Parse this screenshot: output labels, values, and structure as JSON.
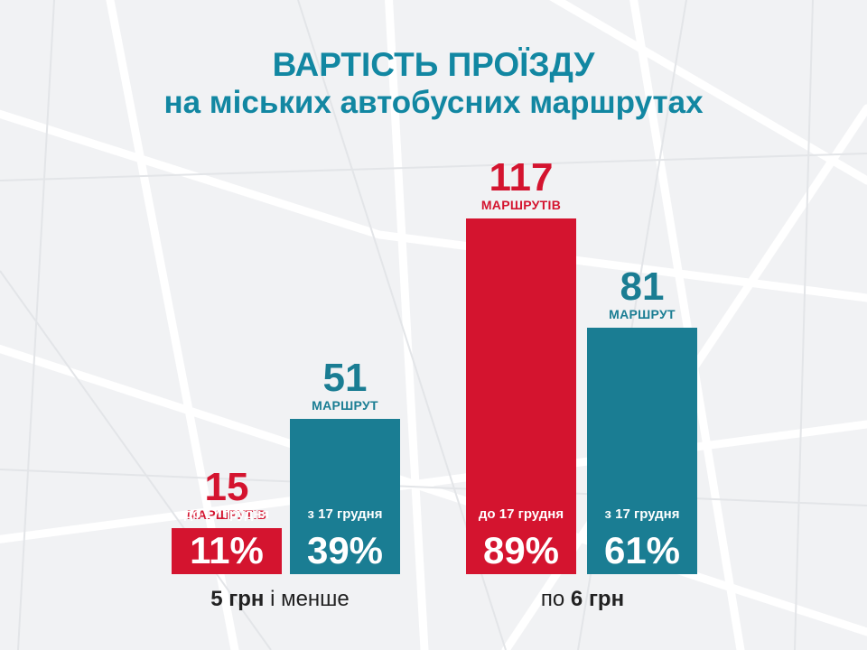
{
  "title_line1": "ВАРТІСТЬ ПРОЇЗДУ",
  "title_line2": "на міських автобусних маршрутах",
  "colors": {
    "before": "#d4142f",
    "after": "#1a7d93",
    "title": "#1287a2"
  },
  "chart_data": {
    "type": "bar",
    "title": "ВАРТІСТЬ ПРОЇЗДУ на міських автобусних маршрутах",
    "categories": [
      "5 грн і менше",
      "по 6 грн"
    ],
    "series": [
      {
        "name": "до 17 грудня",
        "values": [
          15,
          117
        ],
        "units": [
          "МАРШРУТІВ",
          "МАРШРУТІВ"
        ],
        "percent": [
          "11%",
          "89%"
        ]
      },
      {
        "name": "з 17 грудня",
        "values": [
          51,
          81
        ],
        "units": [
          "МАРШРУТ",
          "МАРШРУТ"
        ],
        "percent": [
          "39%",
          "61%"
        ]
      }
    ],
    "ylim": [
      0,
      117
    ]
  },
  "groups": [
    {
      "bold": "5 грн",
      "rest": "і менше"
    },
    {
      "prefix": "по",
      "bold": "6 грн"
    }
  ]
}
